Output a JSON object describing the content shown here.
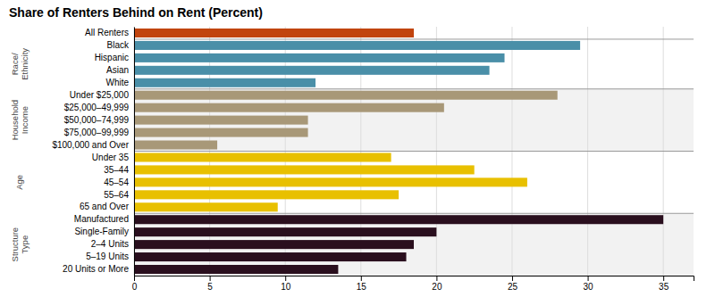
{
  "chart_data": {
    "type": "bar",
    "orientation": "horizontal",
    "title": "Share of Renters Behind on Rent (Percent)",
    "categories": [
      "All Renters",
      "Black",
      "Hispanic",
      "Asian",
      "White",
      "Under $25,000",
      "$25,000–49,999",
      "$50,000–74,999",
      "$75,000–99,999",
      "$100,000 and Over",
      "Under 35",
      "35–44",
      "45–54",
      "55–64",
      "65 and Over",
      "Manufactured",
      "Single-Family",
      "2–4 Units",
      "5–19 Units",
      "20 Units or More"
    ],
    "values": [
      18.5,
      29.5,
      24.5,
      23.5,
      12.0,
      28.0,
      20.5,
      11.5,
      11.5,
      5.5,
      17.0,
      22.5,
      26.0,
      17.5,
      9.5,
      35.0,
      20.0,
      18.5,
      18.0,
      13.5
    ],
    "colors": [
      "#c1440e",
      "#4a8fa8",
      "#4a8fa8",
      "#4a8fa8",
      "#4a8fa8",
      "#a89878",
      "#a89878",
      "#a89878",
      "#a89878",
      "#a89878",
      "#e8c000",
      "#e8c000",
      "#e8c000",
      "#e8c000",
      "#e8c000",
      "#2a0f1e",
      "#2a0f1e",
      "#2a0f1e",
      "#2a0f1e",
      "#2a0f1e"
    ],
    "group_labels": [
      "Race/\nEthnicity",
      "Household\nIncome",
      "Age",
      "Structure\nType"
    ],
    "xlim": [
      0,
      37
    ],
    "xticks": [
      0,
      5,
      10,
      15,
      20,
      25,
      30,
      35
    ],
    "grid": true
  }
}
